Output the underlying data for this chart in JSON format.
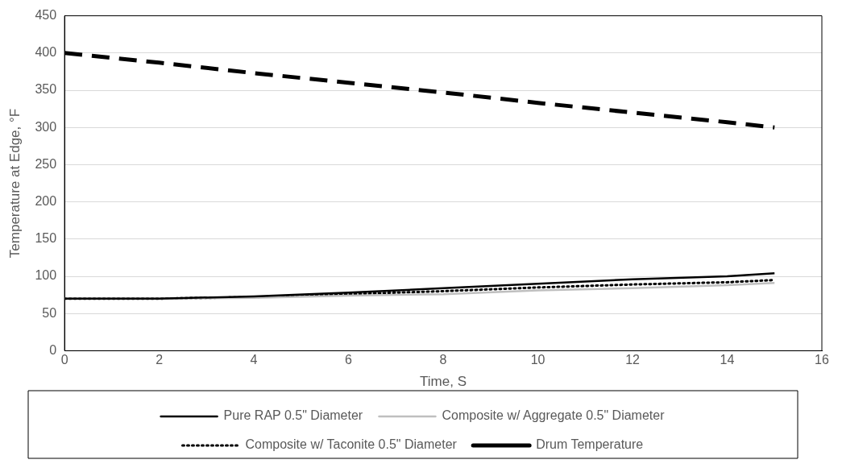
{
  "chart_data": {
    "type": "line",
    "xlabel": "Time, S",
    "ylabel": "Temperature at Edge, °F",
    "x": [
      0,
      2,
      4,
      6,
      8,
      10,
      12,
      14,
      15
    ],
    "series": [
      {
        "name": "Pure RAP 0.5\" Diameter",
        "color": "#000000",
        "line_style": "solid",
        "values": [
          70,
          70,
          73,
          78,
          84,
          90,
          96,
          100,
          104
        ]
      },
      {
        "name": "Composite w/ Aggregate 0.5\" Diameter",
        "color": "#bfbfbf",
        "line_style": "solid",
        "values": [
          70,
          70,
          71,
          74,
          76,
          81,
          84,
          88,
          91
        ]
      },
      {
        "name": "Composite w/ Taconite 0.5\" Diameter",
        "color": "#000000",
        "line_style": "dotted",
        "values": [
          70,
          70,
          72,
          76,
          80,
          85,
          89,
          92,
          95
        ]
      },
      {
        "name": "Drum Temperature",
        "color": "#000000",
        "line_style": "dashed",
        "values": [
          400,
          387,
          373,
          360,
          347,
          333,
          320,
          307,
          300
        ]
      }
    ],
    "xlim": [
      0,
      16
    ],
    "xticks": [
      0,
      2,
      4,
      6,
      8,
      10,
      12,
      14,
      16
    ],
    "ylim": [
      0,
      450
    ],
    "yticks": [
      0,
      50,
      100,
      150,
      200,
      250,
      300,
      350,
      400,
      450
    ],
    "grid": "y",
    "legend": "bottom",
    "marker": "none"
  }
}
